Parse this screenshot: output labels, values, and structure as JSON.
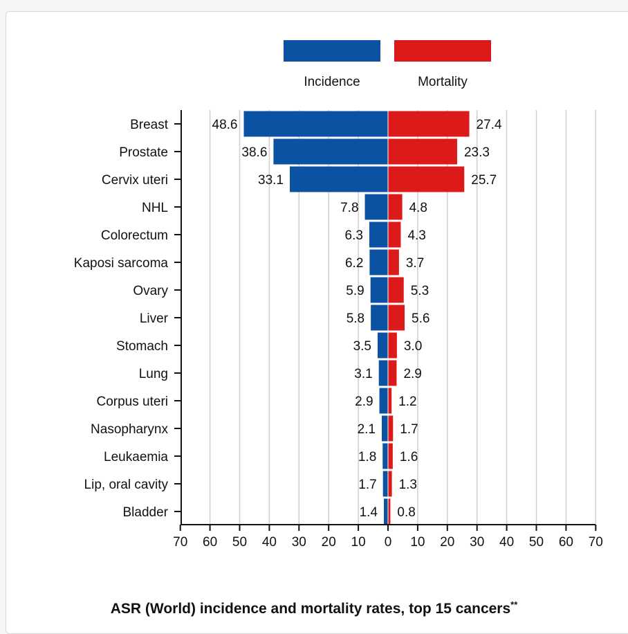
{
  "chart_data": {
    "type": "bar",
    "orientation": "horizontal-diverging",
    "title": "ASR (World) incidence and mortality rates, top 15 cancers",
    "title_suffix": "**",
    "categories": [
      "Breast",
      "Prostate",
      "Cervix uteri",
      "NHL",
      "Colorectum",
      "Kaposi sarcoma",
      "Ovary",
      "Liver",
      "Stomach",
      "Lung",
      "Corpus uteri",
      "Nasopharynx",
      "Leukaemia",
      "Lip, oral cavity",
      "Bladder"
    ],
    "series": [
      {
        "name": "Incidence",
        "color": "#0b52a2",
        "values": [
          48.6,
          38.6,
          33.1,
          7.8,
          6.3,
          6.2,
          5.9,
          5.8,
          3.5,
          3.1,
          2.9,
          2.1,
          1.8,
          1.7,
          1.4
        ],
        "labels": [
          "48.6",
          "38.6",
          "33.1",
          "7.8",
          "6.3",
          "6.2",
          "5.9",
          "5.8",
          "3.5",
          "3.1",
          "2.9",
          "2.1",
          "1.8",
          "1.7",
          "1.4"
        ]
      },
      {
        "name": "Mortality",
        "color": "#dc1a1a",
        "values": [
          27.4,
          23.3,
          25.7,
          4.8,
          4.3,
          3.7,
          5.3,
          5.6,
          3.0,
          2.9,
          1.2,
          1.7,
          1.6,
          1.3,
          0.8
        ],
        "labels": [
          "27.4",
          "23.3",
          "25.7",
          "4.8",
          "4.3",
          "3.7",
          "5.3",
          "5.6",
          "3.0",
          "2.9",
          "1.2",
          "1.7",
          "1.6",
          "1.3",
          "0.8"
        ]
      }
    ],
    "xlim": [
      -70,
      70
    ],
    "xticks": [
      "70",
      "60",
      "50",
      "40",
      "30",
      "20",
      "10",
      "0",
      "10",
      "20",
      "30",
      "40",
      "50",
      "60",
      "70"
    ],
    "grid": true,
    "legend_position": "top"
  }
}
